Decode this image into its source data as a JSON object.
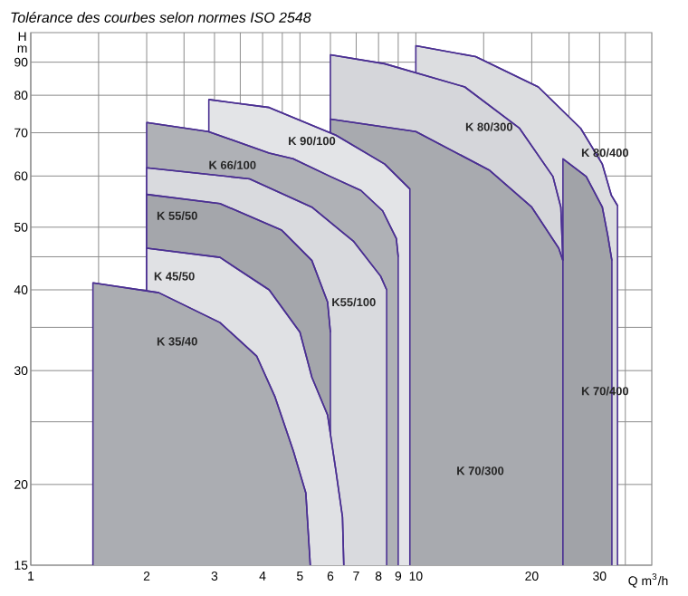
{
  "chart_data": {
    "type": "area",
    "title": "Tolérance des courbes selon normes ISO 2548",
    "xlabel": "Q m$^{3}$/h",
    "ylabel": "H m",
    "log": "xy",
    "grid": true,
    "xlim": [
      1,
      41
    ],
    "ylim": [
      15,
      100
    ],
    "xticks": [
      1,
      {
        "value": 1.5,
        "label": null
      },
      2,
      {
        "value": 2.5,
        "label": null
      },
      3,
      {
        "value": 3.5,
        "label": null
      },
      4,
      {
        "value": 4.5,
        "label": null
      },
      5,
      6,
      7,
      8,
      9,
      10,
      {
        "value": 15,
        "label": null
      },
      20,
      {
        "value": 25,
        "label": null
      },
      30,
      {
        "value": 35,
        "label": null
      }
    ],
    "yticks": [
      15,
      20,
      {
        "value": 25,
        "label": null
      },
      30,
      {
        "value": 35,
        "label": null
      },
      40,
      {
        "value": 45,
        "label": null
      },
      50,
      60,
      70,
      80,
      90
    ],
    "series": [
      {
        "color": "#dcdde0",
        "x": [
          10,
          14.3,
          20.8,
          26.8,
          30.5,
          32.2,
          33.4
        ],
        "values": [
          95.4,
          91.8,
          82.4,
          71.1,
          62.6,
          56,
          54
        ]
      },
      {
        "color": "#d5d6da",
        "x": [
          6,
          8.3,
          13.4,
          18.6,
          22.7,
          23.8,
          24.1
        ],
        "values": [
          92.4,
          89.5,
          82.4,
          71.1,
          59.9,
          53.7,
          44.4
        ]
      },
      {
        "color": "#a8aaaf",
        "x": [
          6,
          10,
          15.5,
          20,
          23.5,
          24.1
        ],
        "values": [
          73.5,
          70.3,
          61.3,
          53.7,
          46.4,
          44.4
        ]
      },
      {
        "color": "#a1a3a8",
        "x": [
          24.1,
          27.7,
          30.5,
          31.5,
          32.3
        ],
        "values": [
          63.8,
          59.9,
          53.7,
          48.6,
          44.4
        ]
      },
      {
        "color": "#e3e4e7",
        "x": [
          2.9,
          4.16,
          6.2,
          8.3,
          9.65
        ],
        "values": [
          78.8,
          76.6,
          69.4,
          62.6,
          57.3
        ]
      },
      {
        "color": "#afb1b6",
        "x": [
          2,
          2.89,
          4.16,
          4.8,
          6,
          7.2,
          8.2,
          8.9,
          9
        ],
        "values": [
          72.6,
          70.3,
          65.1,
          63.8,
          59.9,
          57,
          53,
          48,
          45
        ]
      },
      {
        "color": "#d9dade",
        "x": [
          2,
          3.7,
          5.37,
          6.9,
          8.1,
          8.4
        ],
        "values": [
          61.8,
          59.4,
          53.7,
          47.5,
          42,
          40
        ]
      },
      {
        "color": "#a4a6ab",
        "x": [
          2,
          3.1,
          4.48,
          5.37,
          5.9,
          6
        ],
        "values": [
          56.2,
          54.4,
          49.5,
          44.4,
          38.3,
          34.4
        ]
      },
      {
        "color": "#e0e1e4",
        "x": [
          2,
          3.1,
          4.16,
          5,
          5.37,
          5.9,
          6.2,
          6.45,
          6.5
        ],
        "values": [
          46.4,
          44.9,
          40,
          34.4,
          29.3,
          25.6,
          21,
          17.8,
          15
        ]
      },
      {
        "color": "#abadb2",
        "x": [
          1.45,
          2.15,
          3.1,
          3.86,
          4.31,
          4.81,
          5.18,
          5.32
        ],
        "values": [
          41,
          39.6,
          35.6,
          31.6,
          27.3,
          22.5,
          19.4,
          15
        ]
      }
    ],
    "annotations": [
      "K 35/40",
      "K 45/50",
      "K 55/50",
      "K 66/100",
      "K 90/100",
      "K55/100",
      "K 80/300",
      "K 80/400",
      "K 70/300",
      "K 70/400"
    ]
  }
}
